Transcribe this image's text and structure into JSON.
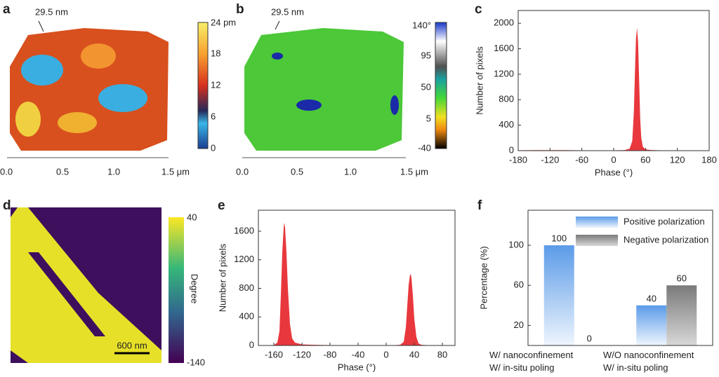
{
  "images": {
    "a": {
      "letter": "a",
      "annotation": "29.5 nm",
      "colorbar": [
        "24 pm",
        "18",
        "12",
        "6",
        "0"
      ],
      "xticks": [
        "0.0",
        "0.5",
        "1.0",
        "1.5 μm"
      ]
    },
    "b": {
      "letter": "b",
      "annotation": "29.5 nm",
      "colorbar": [
        "140°",
        "95",
        "50",
        "5",
        "-40"
      ],
      "xticks": [
        "0.0",
        "0.5",
        "1.0",
        "1.5 μm"
      ]
    },
    "d": {
      "letter": "d",
      "colorbar": [
        "40",
        "-140"
      ],
      "colorbar_label": "Degree",
      "scale_bar": "600 nm"
    }
  },
  "chart_data": [
    {
      "type": "area",
      "letter": "c",
      "xlabel": "Phase (°)",
      "ylabel": "Number of pixels",
      "color": "#e8383d",
      "x": [
        -180,
        -150,
        -120,
        -90,
        -60,
        -30,
        0,
        20,
        30,
        35,
        38,
        40,
        42,
        44,
        46,
        48,
        50,
        52,
        55,
        60,
        70,
        90,
        120,
        150,
        180
      ],
      "values": [
        5,
        8,
        8,
        8,
        6,
        6,
        6,
        8,
        30,
        150,
        600,
        1200,
        1750,
        1930,
        1700,
        1100,
        500,
        200,
        60,
        20,
        10,
        6,
        4,
        3,
        2
      ],
      "xlim": [
        -180,
        180
      ],
      "xticks": [
        -180,
        -120,
        -60,
        0,
        60,
        120,
        180
      ],
      "ylim": [
        0,
        2200
      ],
      "yticks": [
        0,
        400,
        800,
        1200,
        1600,
        2000
      ]
    },
    {
      "type": "area",
      "letter": "e",
      "xlabel": "Phase (°)",
      "ylabel": "Number of pixels",
      "color": "#e8383d",
      "x": [
        -182,
        -170,
        -160,
        -155,
        -152,
        -150,
        -148,
        -146,
        -145,
        -144,
        -142,
        -140,
        -137,
        -134,
        -130,
        -120,
        -100,
        -80,
        -60,
        -40,
        -20,
        0,
        10,
        20,
        25,
        28,
        30,
        32,
        34,
        35,
        36,
        38,
        40,
        43,
        46,
        50,
        60,
        80,
        98
      ],
      "values": [
        0,
        0,
        5,
        40,
        200,
        700,
        1300,
        1650,
        1720,
        1650,
        1300,
        800,
        300,
        100,
        40,
        15,
        8,
        5,
        3,
        3,
        2,
        2,
        3,
        10,
        50,
        250,
        550,
        850,
        990,
        1000,
        950,
        700,
        380,
        120,
        30,
        10,
        3,
        0,
        0
      ],
      "xlim": [
        -182,
        98
      ],
      "xticks": [
        -160,
        -120,
        -80,
        -40,
        0,
        40,
        80
      ],
      "ylim": [
        0,
        1894
      ],
      "yticks": [
        0,
        400,
        800,
        1200,
        1600
      ]
    },
    {
      "type": "bar",
      "letter": "f",
      "ylabel": "Percentage (%)",
      "categories": [
        [
          "W/ nanoconfinement",
          "W/ in-situ poling"
        ],
        [
          "W/O nanoconfinement",
          "W/ in-situ poling"
        ]
      ],
      "series": [
        {
          "name": "Positive polarization",
          "color": "#5b9be8",
          "values": [
            100,
            40
          ]
        },
        {
          "name": "Negative polarization",
          "color": "#808080",
          "values": [
            0,
            60
          ]
        }
      ],
      "ylim": [
        0,
        135
      ],
      "yticks": [
        20,
        60,
        100
      ]
    }
  ]
}
